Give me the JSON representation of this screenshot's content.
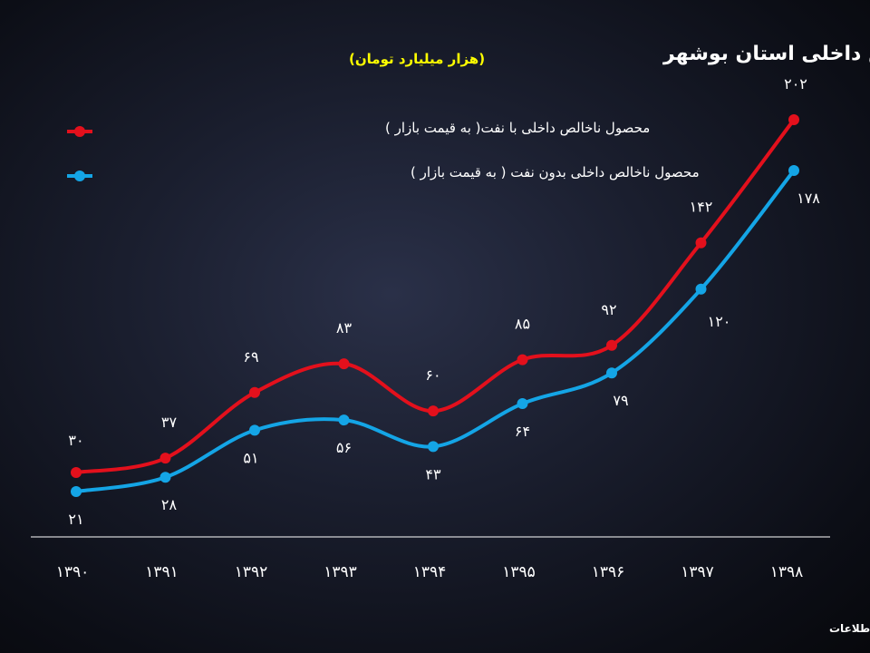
{
  "chart_data": {
    "type": "line",
    "title": "تولید ناخالص داخلی استان بوشهر",
    "subtitle": "(هزار میلیارد تومان)",
    "categories": [
      "۱۳۹۰",
      "۱۳۹۱",
      "۱۳۹۲",
      "۱۳۹۳",
      "۱۳۹۴",
      "۱۳۹۵",
      "۱۳۹۶",
      "۱۳۹۷",
      "۱۳۹۸"
    ],
    "series": [
      {
        "name": "محصول ناخالص داخلی با نفت( به قیمت بازار )",
        "color": "#e3101c",
        "values": [
          30,
          37,
          69,
          83,
          60,
          85,
          92,
          142,
          202
        ],
        "labels": [
          "۳۰",
          "۳۷",
          "۶۹",
          "۸۳",
          "۶۰",
          "۸۵",
          "۹۲",
          "۱۴۲",
          "۲۰۲"
        ]
      },
      {
        "name": "محصول ناخالص داخلی بدون نفت ( به قیمت بازار )",
        "color": "#14a5e6",
        "values": [
          21,
          28,
          51,
          56,
          43,
          64,
          79,
          120,
          178
        ],
        "labels": [
          "۲۱",
          "۲۸",
          "۵۱",
          "۵۶",
          "۴۳",
          "۶۴",
          "۷۹",
          "۱۲۰",
          "۱۷۸"
        ]
      }
    ],
    "legend": "top-left",
    "grid": false
  },
  "footer": {
    "source": "سازمان مدیریت و برنامه ریزی استان بوشهر - معاونت آمار و اطلاعات"
  }
}
